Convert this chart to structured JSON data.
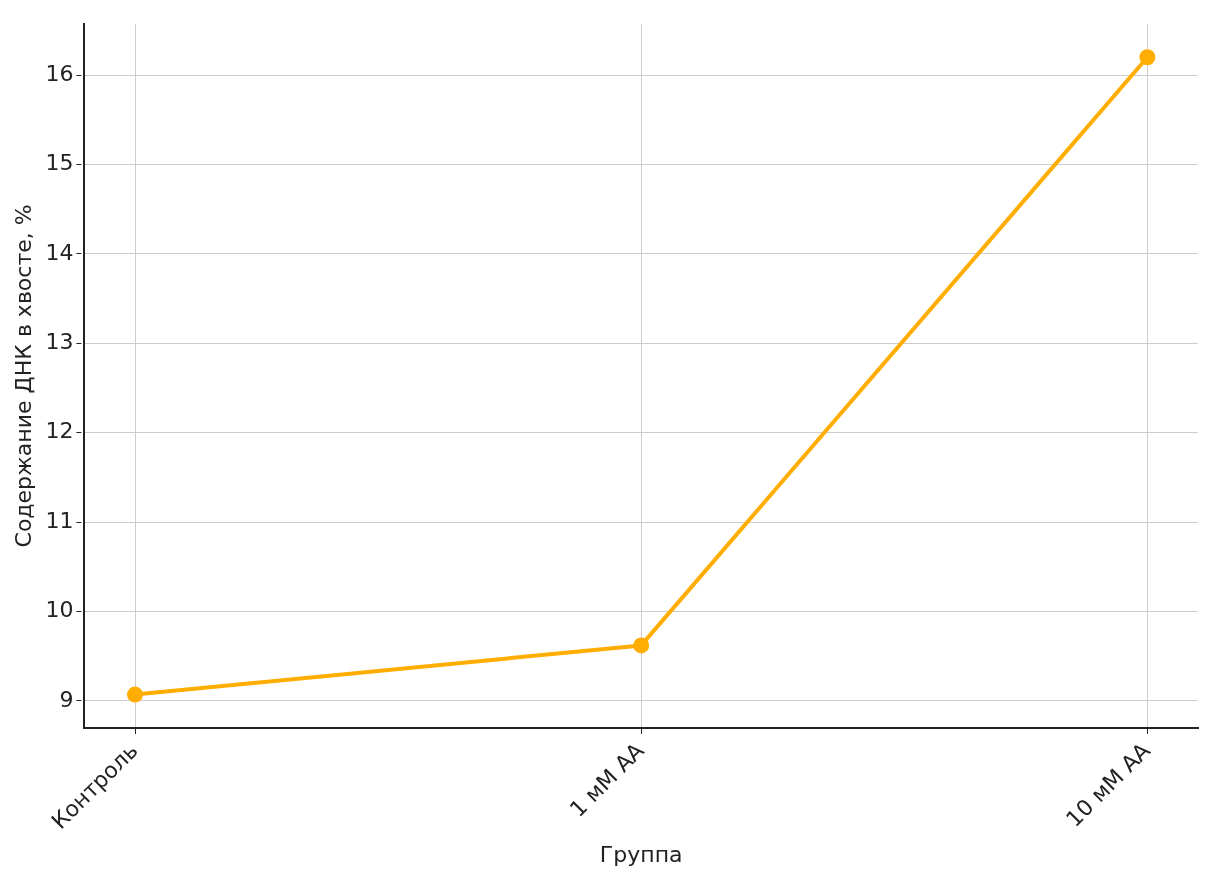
{
  "chart_data": {
    "type": "line",
    "xlabel": "Группа",
    "ylabel": "Содержание ДНК в хвосте, %",
    "categories": [
      "Контроль",
      "1 мМ АА",
      "10 мМ АА"
    ],
    "series": [
      {
        "color": "#ffad00",
        "values": [
          9.07,
          9.62,
          16.2
        ]
      }
    ],
    "ylim": [
      8.7,
      16.57
    ],
    "yticks": [
      9,
      10,
      11,
      12,
      13,
      14,
      15,
      16
    ],
    "grid": true,
    "marker": "circle",
    "line_style": "solid",
    "legend": false
  }
}
